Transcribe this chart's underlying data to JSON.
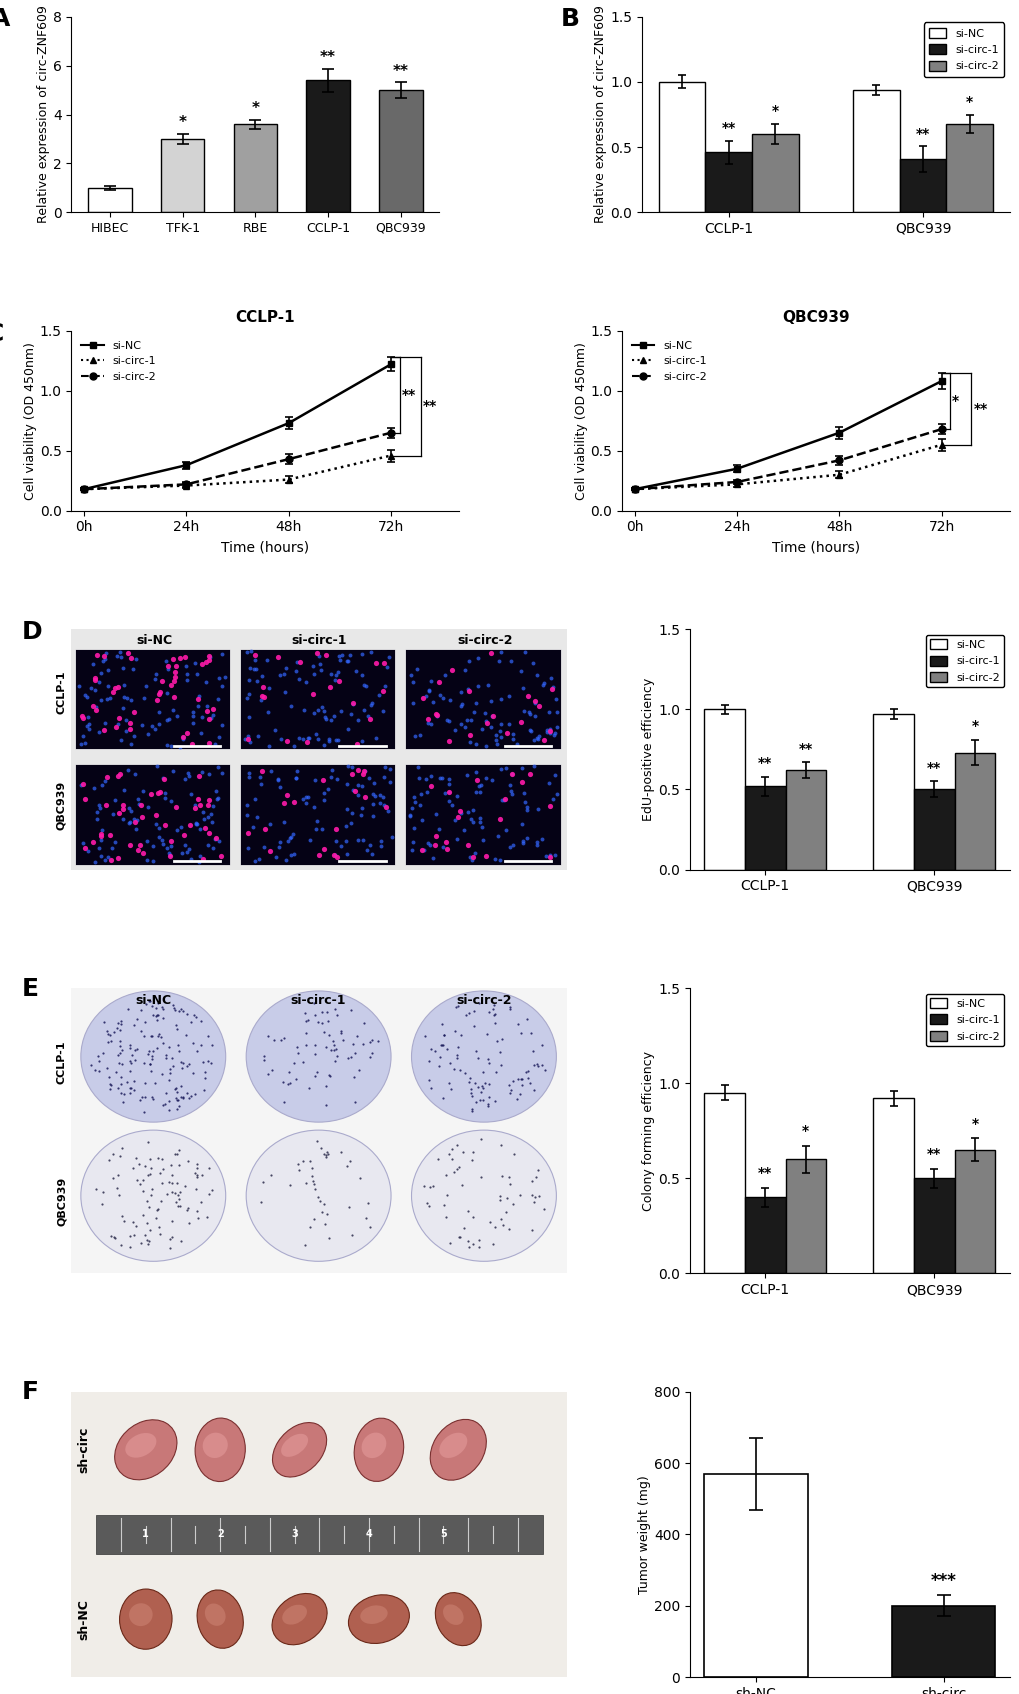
{
  "panel_A": {
    "categories": [
      "HIBEC",
      "TFK-1",
      "RBE",
      "CCLP-1",
      "QBC939"
    ],
    "values": [
      1.0,
      3.0,
      3.6,
      5.4,
      5.0
    ],
    "errors": [
      0.08,
      0.22,
      0.18,
      0.48,
      0.32
    ],
    "colors": [
      "#ffffff",
      "#d3d3d3",
      "#a0a0a0",
      "#1a1a1a",
      "#696969"
    ],
    "ylabel": "Relative expression of circ-ZNF609",
    "ylim": [
      0,
      8
    ],
    "yticks": [
      0,
      2,
      4,
      6,
      8
    ],
    "sig_labels": [
      "",
      "*",
      "*",
      "**",
      "**"
    ],
    "edgecolor": "#000000"
  },
  "panel_B": {
    "groups": [
      "CCLP-1",
      "QBC939"
    ],
    "series": [
      "si-NC",
      "si-circ-1",
      "si-circ-2"
    ],
    "values": [
      [
        1.0,
        0.46,
        0.6
      ],
      [
        0.94,
        0.41,
        0.68
      ]
    ],
    "errors": [
      [
        0.05,
        0.09,
        0.08
      ],
      [
        0.04,
        0.1,
        0.07
      ]
    ],
    "colors": [
      "#ffffff",
      "#1a1a1a",
      "#808080"
    ],
    "ylabel": "Relative expression of circ-ZNF609",
    "ylim": [
      0,
      1.5
    ],
    "yticks": [
      0.0,
      0.5,
      1.0,
      1.5
    ],
    "sig_labels": [
      [
        "",
        "**",
        "*"
      ],
      [
        "",
        "**",
        "*"
      ]
    ],
    "edgecolor": "#000000"
  },
  "panel_C_CCLP1": {
    "title": "CCLP-1",
    "timepoints": [
      0,
      24,
      48,
      72
    ],
    "series": {
      "si-NC": {
        "values": [
          0.18,
          0.38,
          0.73,
          1.22
        ],
        "errors": [
          0.01,
          0.03,
          0.05,
          0.06
        ],
        "style": "-",
        "marker": "s",
        "color": "#000000"
      },
      "si-circ-1": {
        "values": [
          0.18,
          0.21,
          0.26,
          0.46
        ],
        "errors": [
          0.01,
          0.02,
          0.03,
          0.05
        ],
        "style": ":",
        "marker": "^",
        "color": "#000000"
      },
      "si-circ-2": {
        "values": [
          0.18,
          0.22,
          0.43,
          0.65
        ],
        "errors": [
          0.01,
          0.02,
          0.04,
          0.04
        ],
        "style": "--",
        "marker": "o",
        "color": "#000000"
      }
    },
    "ylabel": "Cell viability (OD 450nm)",
    "xlabel": "Time (hours)",
    "ylim": [
      0.0,
      1.5
    ],
    "yticks": [
      0.0,
      0.5,
      1.0,
      1.5
    ],
    "sig_at_72": [
      "**",
      "**"
    ]
  },
  "panel_C_QBC939": {
    "title": "QBC939",
    "timepoints": [
      0,
      24,
      48,
      72
    ],
    "series": {
      "si-NC": {
        "values": [
          0.18,
          0.35,
          0.65,
          1.08
        ],
        "errors": [
          0.01,
          0.03,
          0.05,
          0.07
        ],
        "style": "-",
        "marker": "s",
        "color": "#000000"
      },
      "si-circ-1": {
        "values": [
          0.18,
          0.22,
          0.3,
          0.55
        ],
        "errors": [
          0.01,
          0.02,
          0.03,
          0.05
        ],
        "style": ":",
        "marker": "^",
        "color": "#000000"
      },
      "si-circ-2": {
        "values": [
          0.18,
          0.24,
          0.42,
          0.68
        ],
        "errors": [
          0.01,
          0.02,
          0.04,
          0.04
        ],
        "style": "--",
        "marker": "o",
        "color": "#000000"
      }
    },
    "ylabel": "Cell viability (OD 450nm)",
    "xlabel": "Time (hours)",
    "ylim": [
      0.0,
      1.5
    ],
    "yticks": [
      0.0,
      0.5,
      1.0,
      1.5
    ],
    "sig_at_72": [
      "*",
      "**"
    ]
  },
  "panel_D_bar": {
    "groups": [
      "CCLP-1",
      "QBC939"
    ],
    "series": [
      "si-NC",
      "si-circ-1",
      "si-circ-2"
    ],
    "values": [
      [
        1.0,
        0.52,
        0.62
      ],
      [
        0.97,
        0.5,
        0.73
      ]
    ],
    "errors": [
      [
        0.03,
        0.06,
        0.05
      ],
      [
        0.03,
        0.05,
        0.08
      ]
    ],
    "colors": [
      "#ffffff",
      "#1a1a1a",
      "#808080"
    ],
    "ylabel": "EdU-positive efficiency",
    "ylim": [
      0,
      1.5
    ],
    "yticks": [
      0.0,
      0.5,
      1.0,
      1.5
    ],
    "sig_labels": [
      [
        "",
        "**",
        "**"
      ],
      [
        "",
        "**",
        "*"
      ]
    ],
    "edgecolor": "#000000"
  },
  "panel_E_bar": {
    "groups": [
      "CCLP-1",
      "QBC939"
    ],
    "series": [
      "si-NC",
      "si-circ-1",
      "si-circ-2"
    ],
    "values": [
      [
        0.95,
        0.4,
        0.6
      ],
      [
        0.92,
        0.5,
        0.65
      ]
    ],
    "errors": [
      [
        0.04,
        0.05,
        0.07
      ],
      [
        0.04,
        0.05,
        0.06
      ]
    ],
    "colors": [
      "#ffffff",
      "#1a1a1a",
      "#808080"
    ],
    "ylabel": "Colony forming efficiency",
    "ylim": [
      0,
      1.5
    ],
    "yticks": [
      0.0,
      0.5,
      1.0,
      1.5
    ],
    "sig_labels": [
      [
        "",
        "**",
        "*"
      ],
      [
        "",
        "**",
        "*"
      ]
    ],
    "edgecolor": "#000000"
  },
  "panel_F_bar": {
    "categories": [
      "sh-NC",
      "sh-circ"
    ],
    "values": [
      570,
      200
    ],
    "errors": [
      100,
      30
    ],
    "colors": [
      "#ffffff",
      "#1a1a1a"
    ],
    "ylabel": "Tumor weight (mg)",
    "ylim": [
      0,
      800
    ],
    "yticks": [
      0,
      200,
      400,
      600,
      800
    ],
    "sig_labels": [
      "",
      "***"
    ],
    "edgecolor": "#000000"
  },
  "label_fontsize": 11,
  "tick_fontsize": 10,
  "panel_label_fontsize": 16,
  "sig_fontsize": 11,
  "background_color": "#ffffff"
}
